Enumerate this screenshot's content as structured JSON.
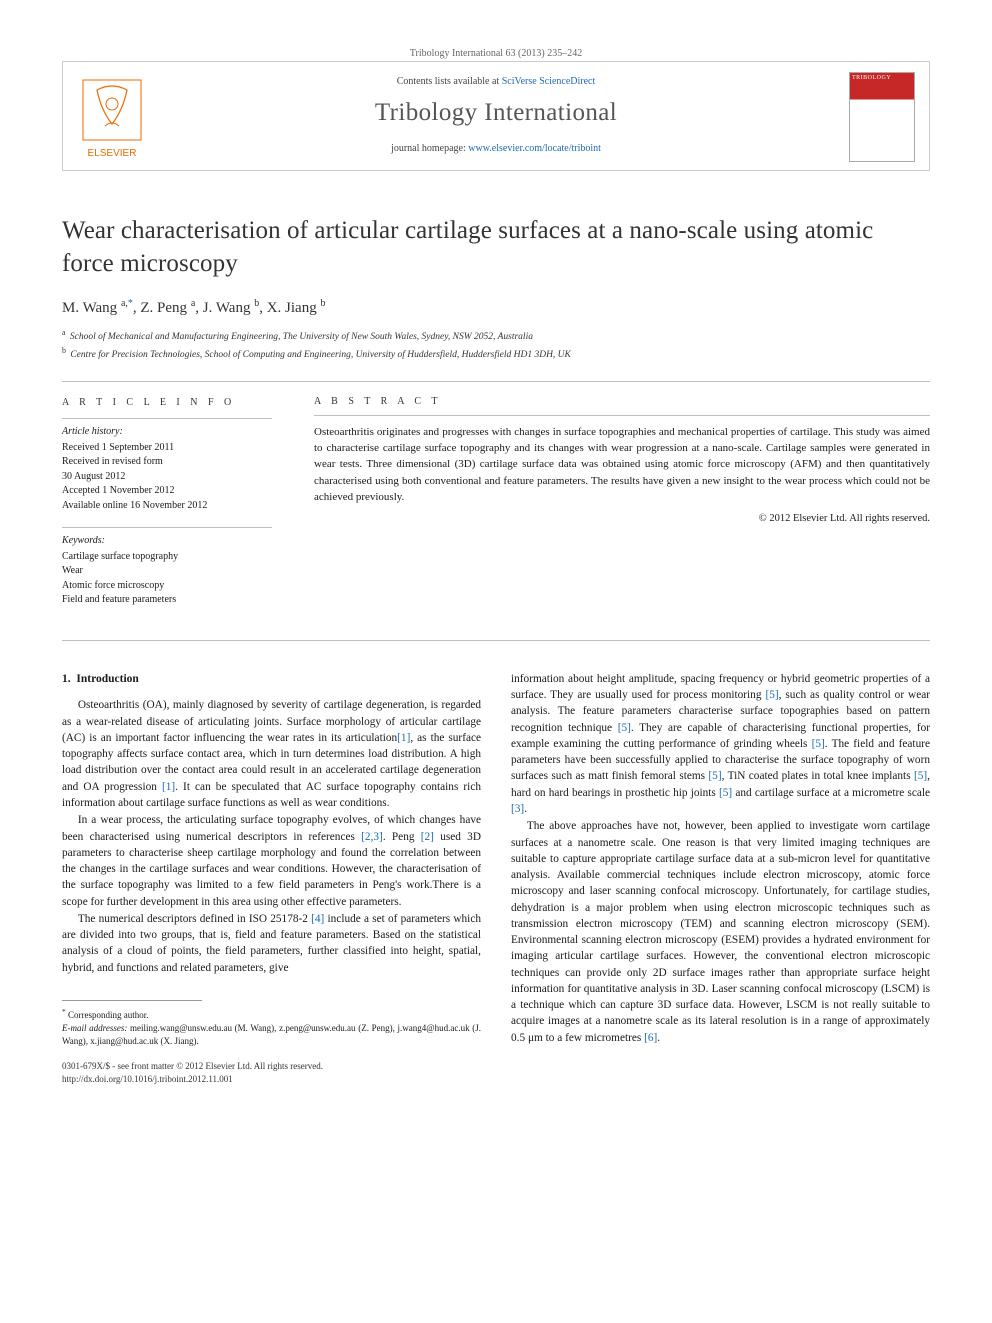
{
  "banner": {
    "citation": "Tribology International 63 (2013) 235–242",
    "contents_prefix": "Contents lists available at ",
    "contents_link": "SciVerse ScienceDirect",
    "journal_name": "Tribology International",
    "homepage_prefix": "journal homepage: ",
    "homepage_url": "www.elsevier.com/locate/triboint",
    "elsevier_label": "ELSEVIER",
    "cover_label": "TRIBOLOGY"
  },
  "title": "Wear characterisation of articular cartilage surfaces at a nano-scale using atomic force microscopy",
  "authors_html": "M. Wang <sup class='affil-sup'>a,</sup><sup>*</sup>, Z. Peng <sup class='affil-sup'>a</sup>, J. Wang <sup class='affil-sup'>b</sup>, X. Jiang <sup class='affil-sup'>b</sup>",
  "affiliations": {
    "a": "School of Mechanical and Manufacturing Engineering, The University of New South Wales, Sydney, NSW 2052, Australia",
    "b": "Centre for Precision Technologies, School of Computing and Engineering, University of Huddersfield, Huddersfield HD1 3DH, UK"
  },
  "info": {
    "heading": "A R T I C L E  I N F O",
    "history_label": "Article history:",
    "history": [
      "Received 1 September 2011",
      "Received in revised form",
      "30 August 2012",
      "Accepted 1 November 2012",
      "Available online 16 November 2012"
    ],
    "keywords_label": "Keywords:",
    "keywords": [
      "Cartilage surface topography",
      "Wear",
      "Atomic force microscopy",
      "Field and feature parameters"
    ]
  },
  "abstract": {
    "heading": "A B S T R A C T",
    "text": "Osteoarthritis originates and progresses with changes in surface topographies and mechanical properties of cartilage. This study was aimed to characterise cartilage surface topography and its changes with wear progression at a nano-scale. Cartilage samples were generated in wear tests. Three dimensional (3D) cartilage surface data was obtained using atomic force microscopy (AFM) and then quantitatively characterised using both conventional and feature parameters. The results have given a new insight to the wear process which could not be achieved previously.",
    "copyright": "© 2012 Elsevier Ltd. All rights reserved."
  },
  "body": {
    "section_number": "1.",
    "section_title": "Introduction",
    "p1": "Osteoarthritis (OA), mainly diagnosed by severity of cartilage degeneration, is regarded as a wear-related disease of articulating joints. Surface morphology of articular cartilage (AC) is an important factor influencing the wear rates in its articulation[1], as the surface topography affects surface contact area, which in turn determines load distribution. A high load distribution over the contact area could result in an accelerated cartilage degeneration and OA progression [1]. It can be speculated that AC surface topography contains rich information about cartilage surface functions as well as wear conditions.",
    "p2": "In a wear process, the articulating surface topography evolves, of which changes have been characterised using numerical descriptors in references [2,3]. Peng [2] used 3D parameters to characterise sheep cartilage morphology and found the correlation between the changes in the cartilage surfaces and wear conditions. However, the characterisation of the surface topography was limited to a few field parameters in Peng's work.There is a scope for further development in this area using other effective parameters.",
    "p3": "The numerical descriptors defined in ISO 25178-2 [4] include a set of parameters which are divided into two groups, that is, field and feature parameters. Based on the statistical analysis of a cloud of points, the field parameters, further classified into height, spatial, hybrid, and functions and related parameters, give",
    "p4": "information about height amplitude, spacing frequency or hybrid geometric properties of a surface. They are usually used for process monitoring [5], such as quality control or wear analysis. The feature parameters characterise surface topographies based on pattern recognition technique [5]. They are capable of characterising functional properties, for example examining the cutting performance of grinding wheels [5]. The field and feature parameters have been successfully applied to characterise the surface topography of worn surfaces such as matt finish femoral stems [5], TiN coated plates in total knee implants [5], hard on hard bearings in prosthetic hip joints [5] and cartilage surface at a micrometre scale [3].",
    "p5": "The above approaches have not, however, been applied to investigate worn cartilage surfaces at a nanometre scale. One reason is that very limited imaging techniques are suitable to capture appropriate cartilage surface data at a sub-micron level for quantitative analysis. Available commercial techniques include electron microscopy, atomic force microscopy and laser scanning confocal microscopy. Unfortunately, for cartilage studies, dehydration is a major problem when using electron microscopic techniques such as transmission electron microscopy (TEM) and scanning electron microscopy (SEM). Environmental scanning electron microscopy (ESEM) provides a hydrated environment for imaging articular cartilage surfaces. However, the conventional electron microscopic techniques can provide only 2D surface images rather than appropriate surface height information for quantitative analysis in 3D. Laser scanning confocal microscopy (LSCM) is a technique which can capture 3D surface data. However, LSCM is not really suitable to acquire images at a nanometre scale as its lateral resolution is in a range of approximately 0.5 μm to a few micrometres [6]."
  },
  "footnotes": {
    "corr": "Corresponding author.",
    "emails_label": "E-mail addresses:",
    "emails": "meiling.wang@unsw.edu.au (M. Wang), z.peng@unsw.edu.au (Z. Peng), j.wang4@hud.ac.uk (J. Wang), x.jiang@hud.ac.uk (X. Jiang)."
  },
  "bottom": {
    "issn": "0301-679X/$ - see front matter © 2012 Elsevier Ltd. All rights reserved.",
    "doi": "http://dx.doi.org/10.1016/j.triboint.2012.11.001"
  },
  "colors": {
    "link": "#1a6bb3",
    "rule": "#bfbfbf",
    "cover_red": "#c62828",
    "elsevier_orange": "#ed6b00"
  }
}
